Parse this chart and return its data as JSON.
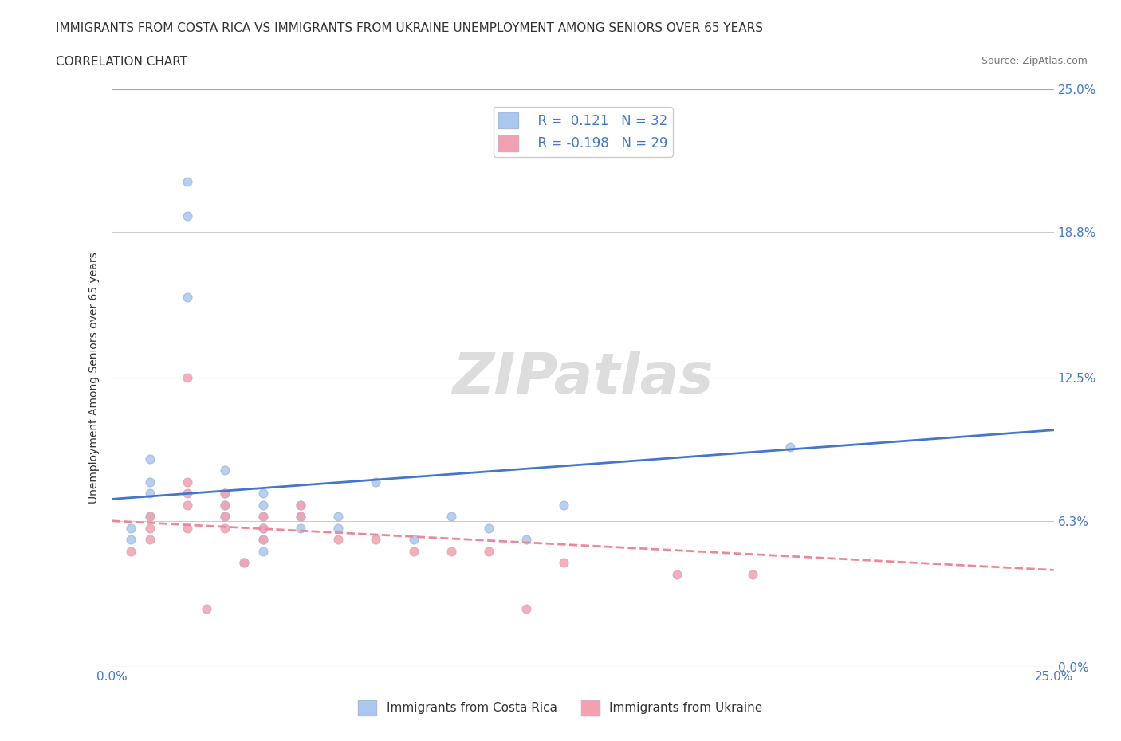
{
  "title_line1": "IMMIGRANTS FROM COSTA RICA VS IMMIGRANTS FROM UKRAINE UNEMPLOYMENT AMONG SENIORS OVER 65 YEARS",
  "title_line2": "CORRELATION CHART",
  "source_text": "Source: ZipAtlas.com",
  "xlabel": "",
  "ylabel": "Unemployment Among Seniors over 65 years",
  "xlim": [
    0.0,
    0.25
  ],
  "ylim": [
    0.0,
    0.25
  ],
  "xtick_labels": [
    "0.0%",
    "25.0%"
  ],
  "ytick_labels": [
    "0.0%",
    "6.3%",
    "12.5%",
    "18.8%",
    "25.0%"
  ],
  "ytick_values": [
    0.0,
    0.063,
    0.125,
    0.188,
    0.25
  ],
  "grid_color": "#cccccc",
  "background_color": "#ffffff",
  "watermark_text": "ZIPatlas",
  "watermark_color": "#dddddd",
  "legend_r1": "R =  0.121   N = 32",
  "legend_r2": "R = -0.198   N = 29",
  "costa_rica_color": "#a8c8f0",
  "ukraine_color": "#f5a0b0",
  "costa_rica_line_color": "#4477cc",
  "ukraine_line_color": "#ee8899",
  "costa_rica_marker": "o",
  "ukraine_marker": "o",
  "costa_rica_r": 0.121,
  "costa_rica_n": 32,
  "ukraine_r": -0.198,
  "ukraine_n": 29,
  "costa_rica_points": [
    [
      0.01,
      0.09
    ],
    [
      0.01,
      0.08
    ],
    [
      0.01,
      0.065
    ],
    [
      0.01,
      0.075
    ],
    [
      0.02,
      0.21
    ],
    [
      0.02,
      0.195
    ],
    [
      0.02,
      0.16
    ],
    [
      0.03,
      0.085
    ],
    [
      0.03,
      0.075
    ],
    [
      0.03,
      0.07
    ],
    [
      0.03,
      0.065
    ],
    [
      0.04,
      0.075
    ],
    [
      0.04,
      0.07
    ],
    [
      0.04,
      0.065
    ],
    [
      0.04,
      0.06
    ],
    [
      0.04,
      0.055
    ],
    [
      0.04,
      0.05
    ],
    [
      0.05,
      0.07
    ],
    [
      0.05,
      0.065
    ],
    [
      0.05,
      0.06
    ],
    [
      0.06,
      0.065
    ],
    [
      0.06,
      0.06
    ],
    [
      0.07,
      0.08
    ],
    [
      0.08,
      0.055
    ],
    [
      0.09,
      0.065
    ],
    [
      0.1,
      0.06
    ],
    [
      0.11,
      0.055
    ],
    [
      0.12,
      0.07
    ],
    [
      0.005,
      0.055
    ],
    [
      0.005,
      0.06
    ],
    [
      0.18,
      0.095
    ],
    [
      0.035,
      0.045
    ]
  ],
  "ukraine_points": [
    [
      0.01,
      0.065
    ],
    [
      0.01,
      0.06
    ],
    [
      0.01,
      0.055
    ],
    [
      0.02,
      0.125
    ],
    [
      0.02,
      0.08
    ],
    [
      0.02,
      0.075
    ],
    [
      0.02,
      0.07
    ],
    [
      0.03,
      0.075
    ],
    [
      0.03,
      0.07
    ],
    [
      0.03,
      0.065
    ],
    [
      0.03,
      0.06
    ],
    [
      0.04,
      0.065
    ],
    [
      0.04,
      0.06
    ],
    [
      0.04,
      0.055
    ],
    [
      0.05,
      0.07
    ],
    [
      0.05,
      0.065
    ],
    [
      0.06,
      0.055
    ],
    [
      0.07,
      0.055
    ],
    [
      0.08,
      0.05
    ],
    [
      0.09,
      0.05
    ],
    [
      0.1,
      0.05
    ],
    [
      0.12,
      0.045
    ],
    [
      0.005,
      0.05
    ],
    [
      0.035,
      0.045
    ],
    [
      0.17,
      0.04
    ],
    [
      0.15,
      0.04
    ],
    [
      0.11,
      0.025
    ],
    [
      0.025,
      0.025
    ],
    [
      0.02,
      0.06
    ]
  ]
}
